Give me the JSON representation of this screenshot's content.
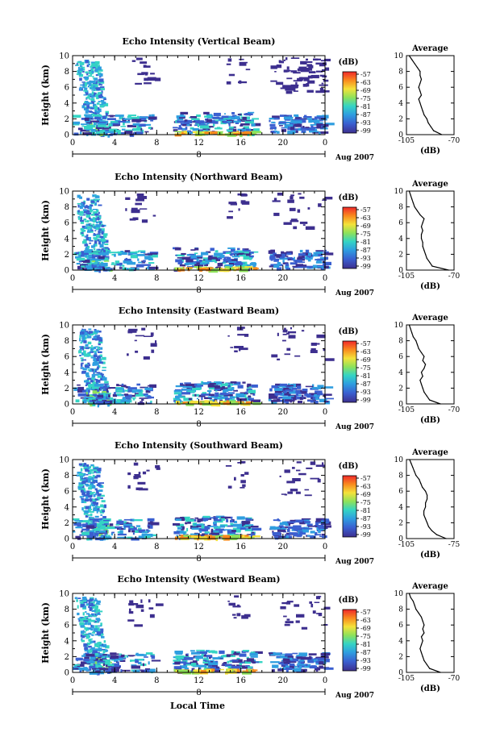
{
  "figure": {
    "xlabel": "Local Time",
    "colorbar_unit": "(dB)",
    "colorbar_ticks": [
      "-57",
      "-63",
      "-69",
      "-75",
      "-81",
      "-87",
      "-93",
      "-99"
    ],
    "colorbar_colors": [
      "#f0282a",
      "#f98a1e",
      "#f4e23a",
      "#8ee25a",
      "#35d4c4",
      "#2f9ee0",
      "#3a5fd0",
      "#3d2f8f"
    ],
    "date_label": "Aug 2007",
    "date_tick": "8"
  },
  "chart_data": [
    {
      "type": "heatmap",
      "title": "Echo Intensity (Vertical Beam)",
      "ylabel": "Height (km)",
      "xlim": [
        0,
        24
      ],
      "ylim": [
        0,
        10
      ],
      "xticks": [
        "0",
        "4",
        "8",
        "12",
        "16",
        "20",
        "0"
      ],
      "yticks": [
        "0",
        "2",
        "4",
        "6",
        "8",
        "10"
      ],
      "profile": {
        "type": "line",
        "title": "Average",
        "xlabel": "(dB)",
        "xticks": [
          "-105",
          "-70"
        ],
        "yticks": [
          "0",
          "2",
          "4",
          "6",
          "8",
          "10"
        ],
        "xlim": [
          -105,
          -70
        ],
        "ylim": [
          0,
          10
        ],
        "x": [
          -79,
          -85,
          -87,
          -89,
          -90,
          -92,
          -93,
          -94,
          -95,
          -96,
          -94,
          -95,
          -96,
          -95,
          -94,
          -95,
          -95,
          -97,
          -99,
          -101,
          -103
        ],
        "y": [
          0,
          0.5,
          1,
          1.5,
          2,
          2.5,
          3,
          3.5,
          4,
          4.5,
          5,
          5.5,
          6,
          6.5,
          7,
          7.5,
          8,
          8.5,
          9,
          9.5,
          10
        ]
      }
    },
    {
      "type": "heatmap",
      "title": "Echo Intensity (Northward Beam)",
      "ylabel": "Height (km)",
      "xlim": [
        0,
        24
      ],
      "ylim": [
        0,
        10
      ],
      "xticks": [
        "0",
        "4",
        "8",
        "12",
        "16",
        "20",
        "0"
      ],
      "yticks": [
        "0",
        "2",
        "4",
        "6",
        "8",
        "10"
      ],
      "profile": {
        "type": "line",
        "title": "Average",
        "xlabel": "(dB)",
        "xticks": [
          "-105",
          "-70"
        ],
        "yticks": [
          "0",
          "2",
          "4",
          "6",
          "8",
          "10"
        ],
        "xlim": [
          -105,
          -70
        ],
        "ylim": [
          0,
          10
        ],
        "x": [
          -74,
          -86,
          -88,
          -90,
          -91,
          -92,
          -93,
          -93,
          -94,
          -94,
          -93,
          -94,
          -93,
          -92,
          -95,
          -97,
          -99,
          -100,
          -101,
          -102,
          -103
        ],
        "y": [
          0,
          0.5,
          1,
          1.5,
          2,
          2.5,
          3,
          3.5,
          4,
          4.5,
          5,
          5.5,
          6,
          6.5,
          7,
          7.5,
          8,
          8.5,
          9,
          9.5,
          10
        ]
      }
    },
    {
      "type": "heatmap",
      "title": "Echo Intensity (Eastward Beam)",
      "ylabel": "Height (km)",
      "xlim": [
        0,
        24
      ],
      "ylim": [
        0,
        10
      ],
      "xticks": [
        "0",
        "4",
        "8",
        "12",
        "16",
        "20",
        "0"
      ],
      "yticks": [
        "0",
        "2",
        "4",
        "6",
        "8",
        "10"
      ],
      "profile": {
        "type": "line",
        "title": "Average",
        "xlabel": "(dB)",
        "xticks": [
          "-105",
          "-70"
        ],
        "yticks": [
          "0",
          "2",
          "4",
          "6",
          "8",
          "10"
        ],
        "xlim": [
          -105,
          -70
        ],
        "ylim": [
          0,
          10
        ],
        "x": [
          -80,
          -88,
          -90,
          -92,
          -93,
          -94,
          -95,
          -93,
          -94,
          -92,
          -91,
          -93,
          -92,
          -94,
          -96,
          -97,
          -98,
          -100,
          -101,
          -102,
          -103
        ],
        "y": [
          0,
          0.5,
          1,
          1.5,
          2,
          2.5,
          3,
          3.5,
          4,
          4.5,
          5,
          5.5,
          6,
          6.5,
          7,
          7.5,
          8,
          8.5,
          9,
          9.5,
          10
        ]
      }
    },
    {
      "type": "heatmap",
      "title": "Echo Intensity (Southward Beam)",
      "ylabel": "Height (km)",
      "xlim": [
        0,
        24
      ],
      "ylim": [
        0,
        10
      ],
      "xticks": [
        "0",
        "4",
        "8",
        "12",
        "16",
        "20",
        "0"
      ],
      "yticks": [
        "0",
        "2",
        "4",
        "6",
        "8",
        "10"
      ],
      "profile": {
        "type": "line",
        "title": "Average",
        "xlabel": "(dB)",
        "xticks": [
          "-105",
          "-75"
        ],
        "yticks": [
          "0",
          "2",
          "4",
          "6",
          "8",
          "10"
        ],
        "xlim": [
          -105,
          -75
        ],
        "ylim": [
          0,
          10
        ],
        "x": [
          -80,
          -86,
          -89,
          -91,
          -92,
          -93,
          -94,
          -94,
          -93,
          -93,
          -92,
          -92,
          -93,
          -95,
          -96,
          -97,
          -99,
          -100,
          -101,
          -102,
          -103
        ],
        "y": [
          0,
          0.5,
          1,
          1.5,
          2,
          2.5,
          3,
          3.5,
          4,
          4.5,
          5,
          5.5,
          6,
          6.5,
          7,
          7.5,
          8,
          8.5,
          9,
          9.5,
          10
        ]
      }
    },
    {
      "type": "heatmap",
      "title": "Echo Intensity (Westward Beam)",
      "ylabel": "Height (km)",
      "xlim": [
        0,
        24
      ],
      "ylim": [
        0,
        10
      ],
      "xticks": [
        "0",
        "4",
        "8",
        "12",
        "16",
        "20",
        "0"
      ],
      "yticks": [
        "0",
        "2",
        "4",
        "6",
        "8",
        "10"
      ],
      "profile": {
        "type": "line",
        "title": "Average",
        "xlabel": "(dB)",
        "xticks": [
          "-105",
          "-70"
        ],
        "yticks": [
          "0",
          "2",
          "4",
          "6",
          "8",
          "10"
        ],
        "xlim": [
          -105,
          -70
        ],
        "ylim": [
          0,
          10
        ],
        "x": [
          -80,
          -88,
          -90,
          -92,
          -93,
          -94,
          -95,
          -94,
          -93,
          -94,
          -92,
          -93,
          -92,
          -93,
          -94,
          -96,
          -98,
          -99,
          -100,
          -102,
          -103
        ],
        "y": [
          0,
          0.5,
          1,
          1.5,
          2,
          2.5,
          3,
          3.5,
          4,
          4.5,
          5,
          5.5,
          6,
          6.5,
          7,
          7.5,
          8,
          8.5,
          9,
          9.5,
          10
        ]
      }
    }
  ]
}
